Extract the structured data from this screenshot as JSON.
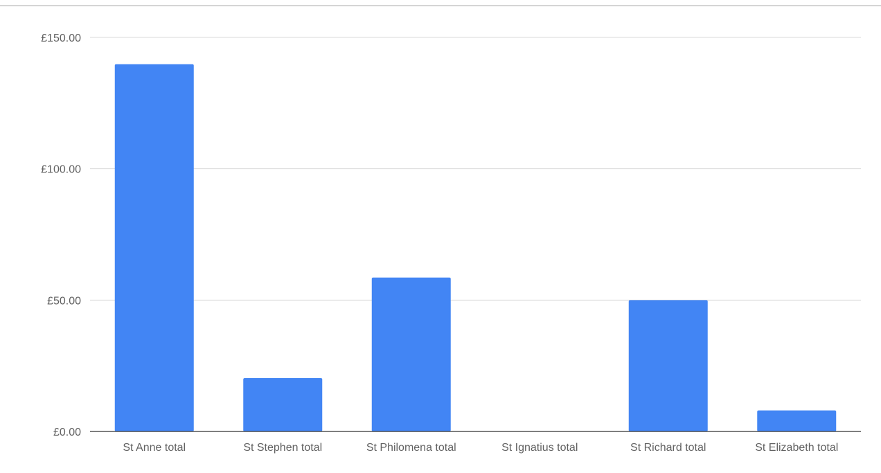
{
  "chart_data": {
    "type": "bar",
    "title": "",
    "xlabel": "",
    "ylabel": "",
    "categories": [
      "St Anne total",
      "St Stephen total",
      "St Philomena total",
      "St Ignatius total",
      "St Richard total",
      "St Elizabeth total"
    ],
    "series": [
      {
        "values": [
          139.8,
          20.3,
          58.6,
          0,
          50.0,
          8.0
        ]
      }
    ],
    "ylim": [
      0,
      150
    ],
    "yticks": [
      0,
      50,
      100,
      150
    ],
    "ytick_labels": [
      "£0.00",
      "£50.00",
      "£100.00",
      "£150.00"
    ],
    "grid": true,
    "legend": "none",
    "colors": {
      "bar": "#4285f4",
      "grid": "#d9d9d9",
      "axis": "#333333",
      "text": "#616161"
    }
  }
}
